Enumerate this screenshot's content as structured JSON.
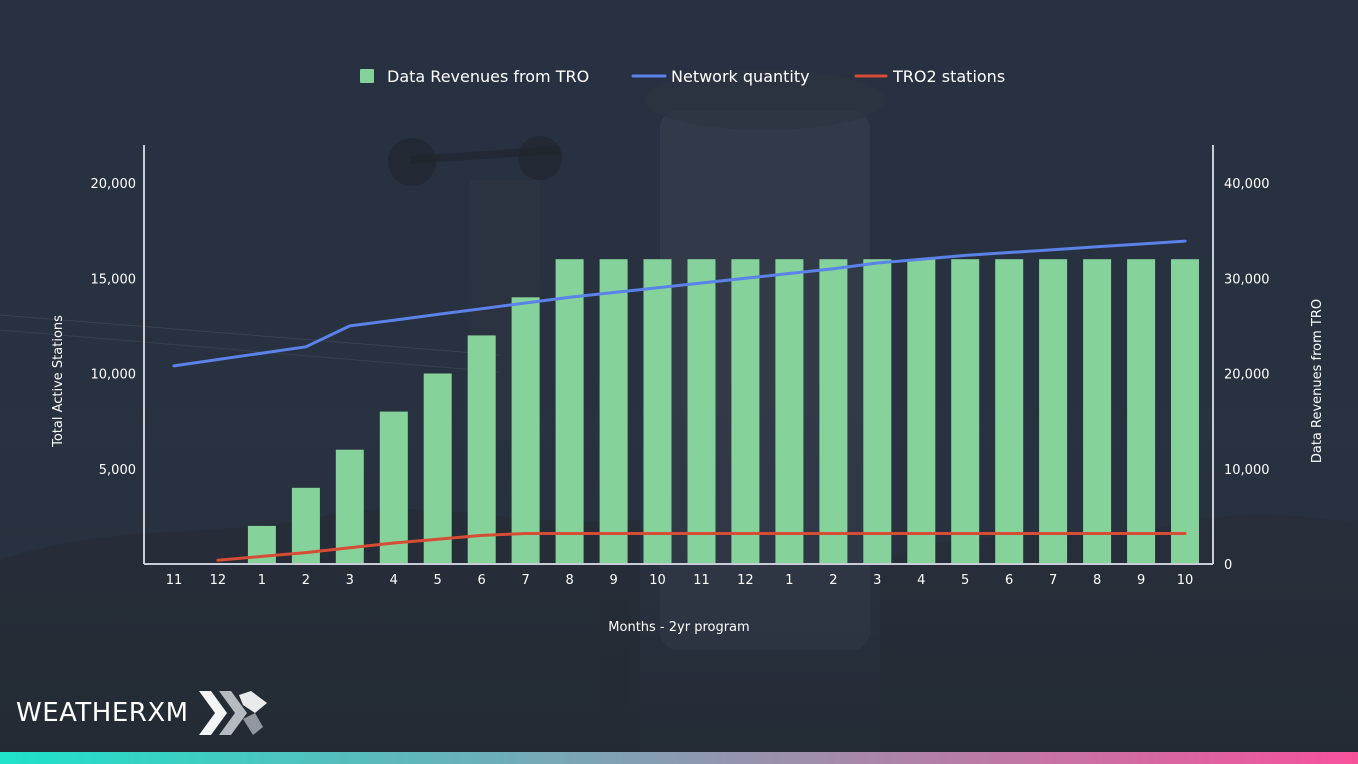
{
  "brand": {
    "name": "WEATHERXM"
  },
  "colors": {
    "bars": "#85d39b",
    "network_line": "#5a82e8",
    "tro2_line": "#d64c35",
    "axis": "#c7ccd6",
    "text": "#ffffff",
    "gradient_start": "#1ee3c9",
    "gradient_end": "#f7529a"
  },
  "chart_data": {
    "type": "bar",
    "title": "",
    "xlabel": "Months - 2yr program",
    "ylabel_left": "Total Active Stations",
    "ylabel_right": "Data Revenues from TRO",
    "ylim_left": [
      0,
      20000
    ],
    "ylim_right": [
      0,
      40000
    ],
    "yticks_left": [
      "",
      "5,000",
      "10,000",
      "15,000",
      "20,000"
    ],
    "yticks_right": [
      "0",
      "10,000",
      "20,000",
      "30,000",
      "40,000"
    ],
    "grid": false,
    "legend_position": "top",
    "categories": [
      "11",
      "12",
      "1",
      "2",
      "3",
      "4",
      "5",
      "6",
      "7",
      "8",
      "9",
      "10",
      "11",
      "12",
      "1",
      "2",
      "3",
      "4",
      "5",
      "6",
      "7",
      "8",
      "9",
      "10"
    ],
    "series": [
      {
        "name": "Data Revenues from TRO",
        "type": "bar",
        "axis": "right",
        "values": [
          0,
          0,
          4000,
          8000,
          12000,
          16000,
          20000,
          24000,
          28000,
          32000,
          32000,
          32000,
          32000,
          32000,
          32000,
          32000,
          32000,
          32000,
          32000,
          32000,
          32000,
          32000,
          32000,
          32000
        ]
      },
      {
        "name": "Network quantity",
        "type": "line",
        "axis": "left",
        "values": [
          10400,
          null,
          null,
          11400,
          12500,
          12800,
          13100,
          13400,
          13700,
          14000,
          14250,
          14500,
          14750,
          15000,
          15250,
          15500,
          15800,
          16000,
          16200,
          16350,
          16500,
          16650,
          16800,
          16950
        ]
      },
      {
        "name": "TRO2 stations",
        "type": "line",
        "axis": "left",
        "values": [
          null,
          200,
          400,
          600,
          850,
          1100,
          1300,
          1500,
          1600,
          1600,
          1600,
          1600,
          1600,
          1600,
          1600,
          1600,
          1600,
          1600,
          1600,
          1600,
          1600,
          1600,
          1600,
          1600
        ]
      }
    ]
  }
}
